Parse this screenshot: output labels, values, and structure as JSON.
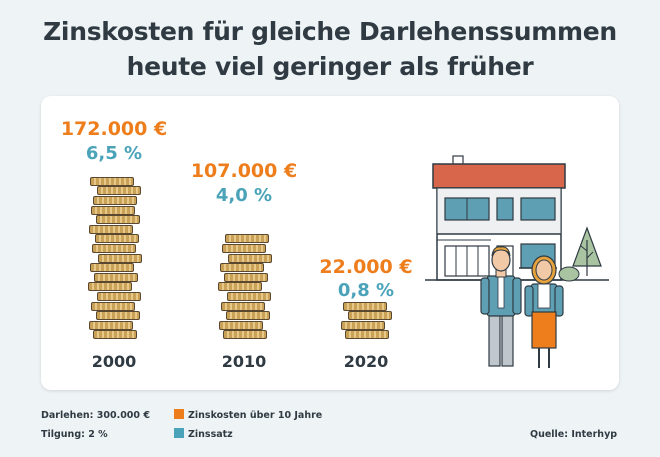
{
  "title_line1": "Zinskosten für gleiche Darlehenssummen",
  "title_line2": "heute viel geringer als früher",
  "colors": {
    "zinskosten": "#ee7d1c",
    "zinssatz": "#4aa3b8",
    "text": "#2f3a42",
    "background": "#eef3f6"
  },
  "chart_data": {
    "type": "bar",
    "categories": [
      "2000",
      "2010",
      "2020"
    ],
    "series": [
      {
        "name": "Zinskosten über 10 Jahre",
        "values": [
          172000,
          107000,
          22000
        ],
        "labels": [
          "172.000 €",
          "107.000 €",
          "22.000 €"
        ],
        "color": "#ee7d1c"
      },
      {
        "name": "Zinssatz",
        "values": [
          6.5,
          4.0,
          0.8
        ],
        "labels": [
          "6,5 %",
          "4,0 %",
          "0,8 %"
        ],
        "color": "#4aa3b8"
      }
    ],
    "coin_stacks": [
      17,
      11,
      4
    ]
  },
  "footer": {
    "darlehen": "Darlehen: 300.000 €",
    "tilgung": "Tilgung: 2 %",
    "legend_zinskosten": "Zinskosten über 10 Jahre",
    "legend_zinssatz": "Zinssatz",
    "source": "Quelle: Interhyp"
  }
}
